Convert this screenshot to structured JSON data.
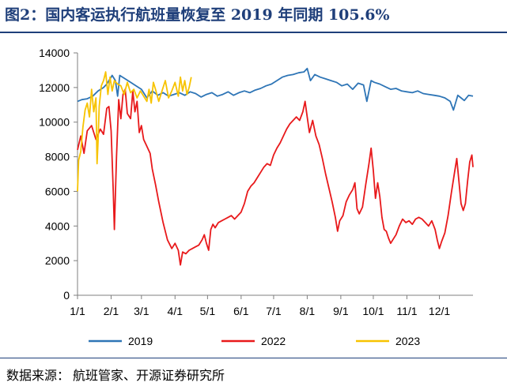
{
  "title": "图2：国内客运执行航班量恢复至 2019 年同期 105.6%",
  "source": {
    "label": "数据来源：",
    "text": "航班管家、开源证券研究所"
  },
  "chart_data": {
    "type": "line",
    "title": "国内客运执行航班量",
    "xlabel": "",
    "ylabel": "",
    "ylim": [
      0,
      14000
    ],
    "yticks": [
      0,
      2000,
      4000,
      6000,
      8000,
      10000,
      12000,
      14000
    ],
    "xlim": [
      1,
      366
    ],
    "x_ticks": [
      {
        "label": "1/1",
        "day": 1
      },
      {
        "label": "2/1",
        "day": 32
      },
      {
        "label": "3/1",
        "day": 60
      },
      {
        "label": "4/1",
        "day": 91
      },
      {
        "label": "5/1",
        "day": 121
      },
      {
        "label": "6/1",
        "day": 152
      },
      {
        "label": "7/1",
        "day": 182
      },
      {
        "label": "8/1",
        "day": 213
      },
      {
        "label": "9/1",
        "day": 244
      },
      {
        "label": "10/1",
        "day": 274
      },
      {
        "label": "11/1",
        "day": 305
      },
      {
        "label": "12/1",
        "day": 335
      }
    ],
    "legend_position": "bottom",
    "grid": false,
    "series": [
      {
        "name": "2019",
        "color": "#2e75b6",
        "points": [
          [
            1,
            11200
          ],
          [
            5,
            11300
          ],
          [
            10,
            11350
          ],
          [
            15,
            11500
          ],
          [
            20,
            11800
          ],
          [
            25,
            12000
          ],
          [
            28,
            12200
          ],
          [
            30,
            12400
          ],
          [
            33,
            12700
          ],
          [
            36,
            12400
          ],
          [
            38,
            11500
          ],
          [
            40,
            12700
          ],
          [
            45,
            12500
          ],
          [
            50,
            12300
          ],
          [
            55,
            12100
          ],
          [
            60,
            11900
          ],
          [
            65,
            11400
          ],
          [
            70,
            11800
          ],
          [
            75,
            11550
          ],
          [
            80,
            11700
          ],
          [
            85,
            11500
          ],
          [
            90,
            11600
          ],
          [
            95,
            11700
          ],
          [
            100,
            11550
          ],
          [
            105,
            11750
          ],
          [
            110,
            11650
          ],
          [
            115,
            11450
          ],
          [
            120,
            11600
          ],
          [
            125,
            11700
          ],
          [
            130,
            11500
          ],
          [
            135,
            11600
          ],
          [
            140,
            11750
          ],
          [
            145,
            11550
          ],
          [
            150,
            11700
          ],
          [
            155,
            11800
          ],
          [
            160,
            11700
          ],
          [
            165,
            11850
          ],
          [
            170,
            11950
          ],
          [
            175,
            12100
          ],
          [
            180,
            12200
          ],
          [
            185,
            12400
          ],
          [
            190,
            12600
          ],
          [
            195,
            12700
          ],
          [
            200,
            12750
          ],
          [
            205,
            12850
          ],
          [
            210,
            12900
          ],
          [
            213,
            13100
          ],
          [
            216,
            12400
          ],
          [
            220,
            12750
          ],
          [
            225,
            12600
          ],
          [
            230,
            12500
          ],
          [
            235,
            12400
          ],
          [
            240,
            12300
          ],
          [
            245,
            12100
          ],
          [
            250,
            12200
          ],
          [
            255,
            11900
          ],
          [
            260,
            12250
          ],
          [
            265,
            12150
          ],
          [
            268,
            11200
          ],
          [
            272,
            12400
          ],
          [
            275,
            12300
          ],
          [
            280,
            12200
          ],
          [
            285,
            12050
          ],
          [
            290,
            11900
          ],
          [
            295,
            11950
          ],
          [
            300,
            11800
          ],
          [
            305,
            11750
          ],
          [
            310,
            11700
          ],
          [
            315,
            11800
          ],
          [
            320,
            11650
          ],
          [
            325,
            11600
          ],
          [
            330,
            11550
          ],
          [
            335,
            11500
          ],
          [
            340,
            11400
          ],
          [
            345,
            11200
          ],
          [
            348,
            10700
          ],
          [
            352,
            11550
          ],
          [
            355,
            11400
          ],
          [
            358,
            11250
          ],
          [
            362,
            11550
          ],
          [
            366,
            11500
          ]
        ]
      },
      {
        "name": "2022",
        "color": "#e8191b",
        "points": [
          [
            1,
            8400
          ],
          [
            4,
            9200
          ],
          [
            7,
            8200
          ],
          [
            10,
            9500
          ],
          [
            14,
            9800
          ],
          [
            18,
            9000
          ],
          [
            22,
            9600
          ],
          [
            25,
            9300
          ],
          [
            28,
            10800
          ],
          [
            30,
            10900
          ],
          [
            32,
            9500
          ],
          [
            34,
            6000
          ],
          [
            35,
            3800
          ],
          [
            37,
            8000
          ],
          [
            39,
            11300
          ],
          [
            41,
            10200
          ],
          [
            43,
            11600
          ],
          [
            45,
            11900
          ],
          [
            47,
            10500
          ],
          [
            50,
            10200
          ],
          [
            52,
            11800
          ],
          [
            54,
            10600
          ],
          [
            56,
            11200
          ],
          [
            58,
            9400
          ],
          [
            60,
            9800
          ],
          [
            62,
            9000
          ],
          [
            65,
            8600
          ],
          [
            68,
            8200
          ],
          [
            70,
            7300
          ],
          [
            73,
            6400
          ],
          [
            76,
            5400
          ],
          [
            80,
            4200
          ],
          [
            84,
            3200
          ],
          [
            88,
            2700
          ],
          [
            91,
            3000
          ],
          [
            94,
            2600
          ],
          [
            96,
            1750
          ],
          [
            98,
            2500
          ],
          [
            101,
            2400
          ],
          [
            104,
            2600
          ],
          [
            107,
            2700
          ],
          [
            110,
            2800
          ],
          [
            113,
            2900
          ],
          [
            116,
            3200
          ],
          [
            118,
            3500
          ],
          [
            120,
            3000
          ],
          [
            122,
            2600
          ],
          [
            124,
            3800
          ],
          [
            126,
            4100
          ],
          [
            128,
            3900
          ],
          [
            131,
            4200
          ],
          [
            134,
            4300
          ],
          [
            137,
            4400
          ],
          [
            140,
            4500
          ],
          [
            143,
            4600
          ],
          [
            146,
            4400
          ],
          [
            149,
            4600
          ],
          [
            152,
            4800
          ],
          [
            155,
            5300
          ],
          [
            158,
            6000
          ],
          [
            161,
            6300
          ],
          [
            164,
            6500
          ],
          [
            167,
            6800
          ],
          [
            170,
            7100
          ],
          [
            173,
            7400
          ],
          [
            176,
            7600
          ],
          [
            179,
            7500
          ],
          [
            182,
            8100
          ],
          [
            185,
            8500
          ],
          [
            188,
            8800
          ],
          [
            191,
            9200
          ],
          [
            194,
            9600
          ],
          [
            197,
            9900
          ],
          [
            200,
            10100
          ],
          [
            203,
            10300
          ],
          [
            206,
            10100
          ],
          [
            209,
            10600
          ],
          [
            211,
            11200
          ],
          [
            213,
            10300
          ],
          [
            215,
            9400
          ],
          [
            218,
            10100
          ],
          [
            221,
            9200
          ],
          [
            224,
            8700
          ],
          [
            227,
            7900
          ],
          [
            230,
            7000
          ],
          [
            233,
            6200
          ],
          [
            236,
            5400
          ],
          [
            239,
            4500
          ],
          [
            241,
            3700
          ],
          [
            243,
            4300
          ],
          [
            246,
            4600
          ],
          [
            249,
            5400
          ],
          [
            252,
            5800
          ],
          [
            255,
            6100
          ],
          [
            257,
            6500
          ],
          [
            259,
            5000
          ],
          [
            261,
            4700
          ],
          [
            264,
            5100
          ],
          [
            267,
            6400
          ],
          [
            270,
            7600
          ],
          [
            272,
            8500
          ],
          [
            274,
            7200
          ],
          [
            276,
            5600
          ],
          [
            278,
            6500
          ],
          [
            280,
            5700
          ],
          [
            282,
            4500
          ],
          [
            284,
            3800
          ],
          [
            286,
            3700
          ],
          [
            288,
            3300
          ],
          [
            290,
            3000
          ],
          [
            292,
            3200
          ],
          [
            295,
            3500
          ],
          [
            298,
            4000
          ],
          [
            301,
            4400
          ],
          [
            304,
            4200
          ],
          [
            307,
            4300
          ],
          [
            310,
            4100
          ],
          [
            313,
            4400
          ],
          [
            316,
            4500
          ],
          [
            319,
            4400
          ],
          [
            322,
            4200
          ],
          [
            325,
            4000
          ],
          [
            328,
            4300
          ],
          [
            331,
            3800
          ],
          [
            333,
            3200
          ],
          [
            335,
            2700
          ],
          [
            337,
            3100
          ],
          [
            340,
            3600
          ],
          [
            343,
            4600
          ],
          [
            346,
            5900
          ],
          [
            349,
            7100
          ],
          [
            351,
            7900
          ],
          [
            353,
            6600
          ],
          [
            355,
            5300
          ],
          [
            357,
            4900
          ],
          [
            359,
            5300
          ],
          [
            361,
            6600
          ],
          [
            363,
            7700
          ],
          [
            365,
            8100
          ],
          [
            366,
            7400
          ]
        ]
      },
      {
        "name": "2023",
        "color": "#f7c300",
        "points": [
          [
            1,
            6000
          ],
          [
            2,
            7800
          ],
          [
            4,
            8300
          ],
          [
            6,
            9700
          ],
          [
            8,
            10700
          ],
          [
            10,
            11100
          ],
          [
            12,
            10300
          ],
          [
            14,
            11900
          ],
          [
            16,
            10600
          ],
          [
            18,
            11400
          ],
          [
            19,
            7600
          ],
          [
            20,
            8900
          ],
          [
            21,
            10900
          ],
          [
            23,
            12100
          ],
          [
            25,
            12400
          ],
          [
            27,
            12900
          ],
          [
            29,
            11600
          ],
          [
            31,
            12600
          ],
          [
            33,
            11800
          ],
          [
            35,
            12400
          ],
          [
            38,
            12200
          ],
          [
            41,
            12100
          ],
          [
            44,
            11600
          ],
          [
            47,
            12300
          ],
          [
            50,
            11700
          ],
          [
            53,
            11900
          ],
          [
            56,
            11400
          ],
          [
            59,
            11800
          ],
          [
            62,
            11500
          ],
          [
            65,
            11200
          ],
          [
            67,
            11900
          ],
          [
            69,
            11100
          ],
          [
            71,
            12300
          ],
          [
            73,
            11900
          ],
          [
            76,
            11200
          ],
          [
            79,
            11800
          ],
          [
            82,
            12400
          ],
          [
            85,
            11400
          ],
          [
            88,
            11800
          ],
          [
            91,
            12300
          ],
          [
            94,
            11500
          ],
          [
            96,
            12600
          ],
          [
            98,
            11800
          ],
          [
            100,
            12400
          ],
          [
            102,
            11600
          ],
          [
            104,
            12000
          ],
          [
            106,
            12600
          ]
        ]
      }
    ]
  }
}
